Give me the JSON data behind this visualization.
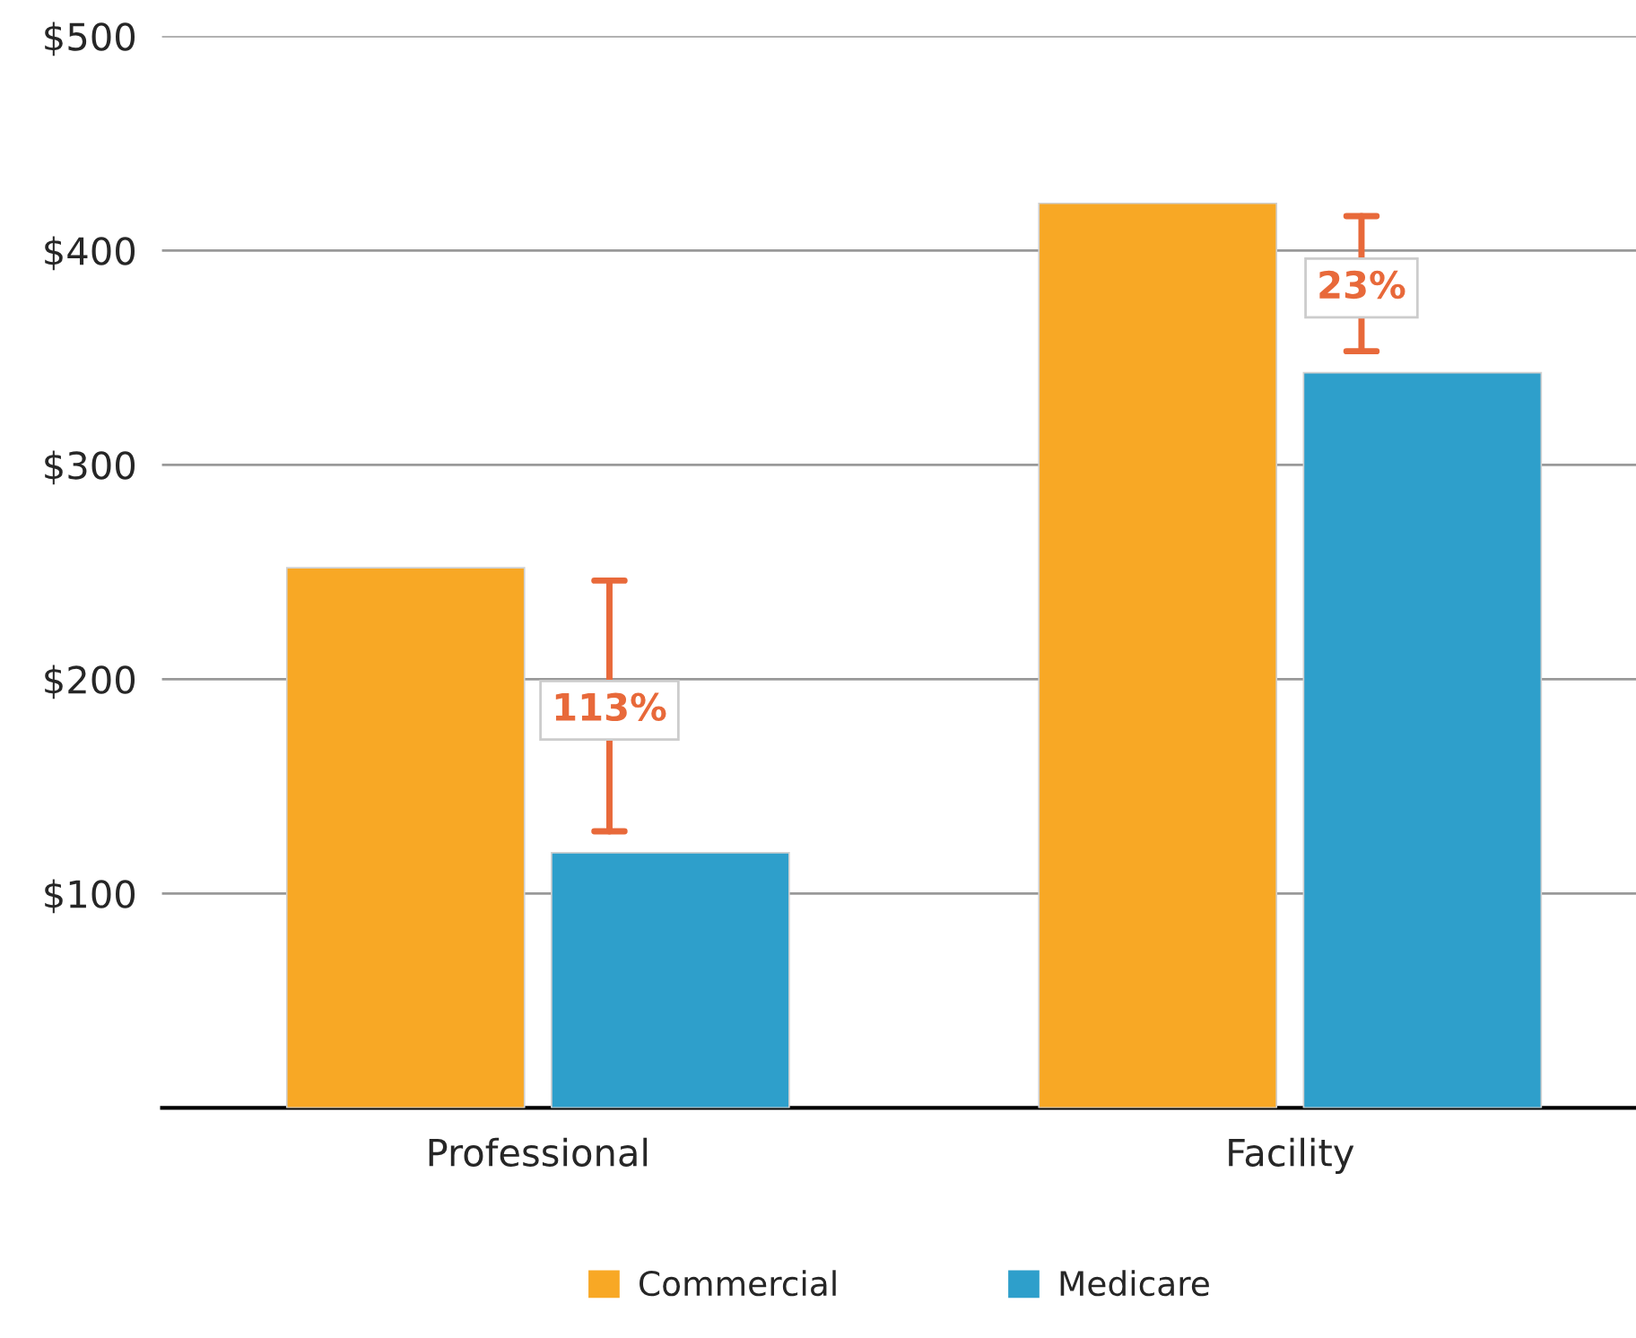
{
  "chart_data": {
    "type": "bar",
    "categories": [
      "Professional",
      "Facility"
    ],
    "series": [
      {
        "name": "Commercial",
        "color": "#f8a825",
        "values": [
          252,
          422
        ]
      },
      {
        "name": "Medicare",
        "color": "#2e9fcb",
        "values": [
          119,
          343
        ]
      }
    ],
    "ylim": [
      0,
      500
    ],
    "yticks": [
      {
        "value": 0,
        "label": null
      },
      {
        "value": 100,
        "label": "$100"
      },
      {
        "value": 200,
        "label": "$200"
      },
      {
        "value": 300,
        "label": "$300"
      },
      {
        "value": 400,
        "label": "$400"
      },
      {
        "value": 500,
        "label": "$500"
      }
    ],
    "grid": "y",
    "legend": "bottom",
    "annotations": [
      "113%",
      "23%"
    ]
  }
}
